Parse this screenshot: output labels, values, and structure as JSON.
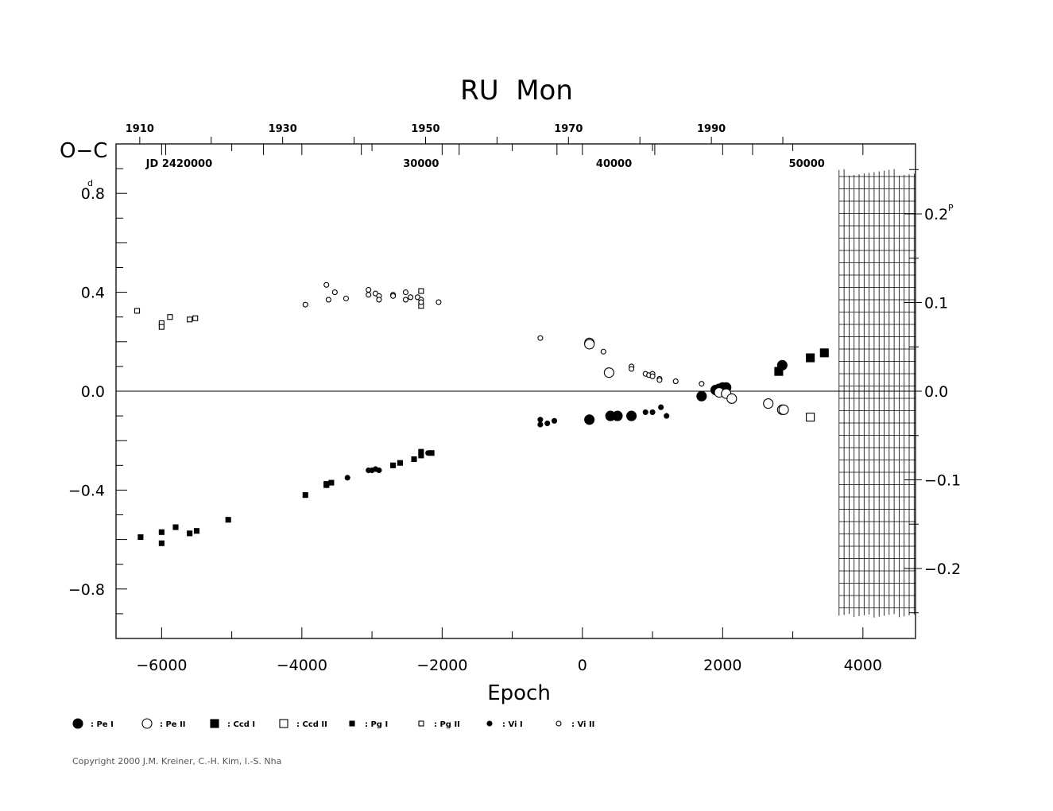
{
  "chart_data": {
    "type": "scatter",
    "title": "RU  Mon",
    "xlabel": "Epoch",
    "ylabel": "O−C",
    "ylabel_unit": "d",
    "right_unit": "P",
    "xlim": [
      -6650,
      4750
    ],
    "ylim": [
      -1.0,
      1.0
    ],
    "x_ticks": [
      -6000,
      -4000,
      -2000,
      0,
      2000,
      4000
    ],
    "x_tick_labels": [
      "−6000",
      "−4000",
      "−2000",
      "0",
      "2000",
      "4000"
    ],
    "y_ticks": [
      0.8,
      0.4,
      0.0,
      -0.4,
      -0.8
    ],
    "y_tick_labels": [
      "0.8",
      "0.4",
      "0.0",
      "−0.4",
      "−0.8"
    ],
    "right_ticks": [
      0.2,
      0.1,
      0.0,
      -0.1,
      -0.2
    ],
    "right_tick_labels": [
      "0.2",
      "0.1",
      "0.0",
      "−0.1",
      "−0.2"
    ],
    "period_days": 3.585,
    "year_ticks": [
      1910,
      1930,
      1950,
      1970,
      1990
    ],
    "year_tick_labels": [
      "1910",
      "1930",
      "1950",
      "1970",
      "1990"
    ],
    "jd_labels": [
      {
        "epoch": -5750,
        "text": "JD  2420000"
      },
      {
        "epoch": -2300,
        "text": "30000"
      },
      {
        "epoch": 450,
        "text": "40000"
      },
      {
        "epoch": 3200,
        "text": "50000"
      }
    ],
    "future_hatch_from_epoch": 3660,
    "zero_line": true,
    "series": [
      {
        "name": "Pe I",
        "marker": "circle-filled-large",
        "points": [
          [
            100,
            -0.115
          ],
          [
            400,
            -0.1
          ],
          [
            500,
            -0.1
          ],
          [
            700,
            -0.1
          ],
          [
            1700,
            -0.02
          ],
          [
            1900,
            0.005
          ],
          [
            1950,
            0.01
          ],
          [
            2000,
            0.015
          ],
          [
            2050,
            0.015
          ],
          [
            2850,
            0.105
          ]
        ]
      },
      {
        "name": "Pe II",
        "marker": "circle-open-large",
        "points": [
          [
            100,
            0.195
          ],
          [
            100,
            0.19
          ],
          [
            380,
            0.075
          ],
          [
            1950,
            -0.005
          ],
          [
            2050,
            -0.01
          ],
          [
            2130,
            -0.03
          ],
          [
            2650,
            -0.05
          ],
          [
            2850,
            -0.075
          ],
          [
            2870,
            -0.075
          ]
        ]
      },
      {
        "name": "Ccd I",
        "marker": "square-filled-large",
        "points": [
          [
            2800,
            0.08
          ],
          [
            3250,
            0.135
          ],
          [
            3450,
            0.155
          ]
        ]
      },
      {
        "name": "Ccd II",
        "marker": "square-open-large",
        "points": [
          [
            3250,
            -0.105
          ]
        ]
      },
      {
        "name": "Pg I",
        "marker": "square-filled-small",
        "points": [
          [
            -6300,
            -0.59
          ],
          [
            -6000,
            -0.57
          ],
          [
            -6000,
            -0.615
          ],
          [
            -5800,
            -0.55
          ],
          [
            -5600,
            -0.575
          ],
          [
            -5500,
            -0.565
          ],
          [
            -5050,
            -0.52
          ],
          [
            -3950,
            -0.42
          ],
          [
            -3650,
            -0.375
          ],
          [
            -3650,
            -0.38
          ],
          [
            -3580,
            -0.37
          ],
          [
            -2700,
            -0.3
          ],
          [
            -2600,
            -0.29
          ],
          [
            -2400,
            -0.275
          ],
          [
            -2300,
            -0.245
          ],
          [
            -2300,
            -0.26
          ],
          [
            -2150,
            -0.25
          ]
        ]
      },
      {
        "name": "Pg II",
        "marker": "square-open-small",
        "points": [
          [
            -6350,
            0.325
          ],
          [
            -6000,
            0.275
          ],
          [
            -6000,
            0.26
          ],
          [
            -5880,
            0.3
          ],
          [
            -5600,
            0.29
          ],
          [
            -5520,
            0.295
          ],
          [
            -2300,
            0.405
          ],
          [
            -2300,
            0.345
          ]
        ]
      },
      {
        "name": "Vi I",
        "marker": "circle-filled-small",
        "points": [
          [
            -3350,
            -0.35
          ],
          [
            -3050,
            -0.32
          ],
          [
            -3000,
            -0.32
          ],
          [
            -2950,
            -0.315
          ],
          [
            -2900,
            -0.32
          ],
          [
            -2200,
            -0.25
          ],
          [
            -600,
            -0.115
          ],
          [
            -600,
            -0.135
          ],
          [
            -500,
            -0.13
          ],
          [
            -400,
            -0.12
          ],
          [
            1200,
            -0.1
          ],
          [
            900,
            -0.085
          ],
          [
            1000,
            -0.085
          ],
          [
            1120,
            -0.065
          ]
        ]
      },
      {
        "name": "Vi II",
        "marker": "circle-open-small",
        "points": [
          [
            -3950,
            0.35
          ],
          [
            -3650,
            0.43
          ],
          [
            -3620,
            0.37
          ],
          [
            -3530,
            0.4
          ],
          [
            -3370,
            0.375
          ],
          [
            -3050,
            0.41
          ],
          [
            -3050,
            0.39
          ],
          [
            -2950,
            0.395
          ],
          [
            -2900,
            0.385
          ],
          [
            -2900,
            0.37
          ],
          [
            -2700,
            0.39
          ],
          [
            -2700,
            0.385
          ],
          [
            -2520,
            0.4
          ],
          [
            -2520,
            0.37
          ],
          [
            -2450,
            0.38
          ],
          [
            -2350,
            0.38
          ],
          [
            -2300,
            0.37
          ],
          [
            -2300,
            0.36
          ],
          [
            -2050,
            0.36
          ],
          [
            -600,
            0.215
          ],
          [
            300,
            0.16
          ],
          [
            700,
            0.1
          ],
          [
            700,
            0.09
          ],
          [
            900,
            0.07
          ],
          [
            950,
            0.065
          ],
          [
            1000,
            0.07
          ],
          [
            1000,
            0.06
          ],
          [
            1100,
            0.05
          ],
          [
            1100,
            0.045
          ],
          [
            1330,
            0.04
          ],
          [
            1700,
            0.03
          ]
        ]
      }
    ]
  },
  "copyright": "Copyright 2000 J.M. Kreiner, C.-H. Kim, I.-S. Nha"
}
